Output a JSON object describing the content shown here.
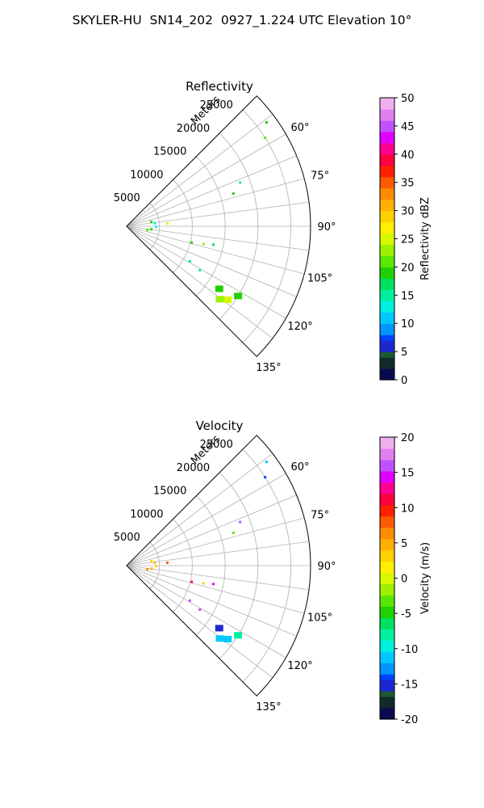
{
  "figure_title": "SKYLER-HU  SN14_202  0927_1.224 UTC Elevation 10°",
  "chart_data": [
    {
      "type": "polar-sector",
      "title": "Reflectivity",
      "radial_label": "Meters",
      "r_ticks": [
        5000,
        10000,
        15000,
        20000,
        25000
      ],
      "r_max": 28000,
      "azimuth_range_deg": [
        45,
        135
      ],
      "azimuth_tick_labels": [
        "60°",
        "75°",
        "90°",
        "105°",
        "120°",
        "135°"
      ],
      "colorbar": {
        "label": "Reflectivity dBZ",
        "min": 0,
        "max": 50,
        "ticks": [
          0,
          5,
          10,
          15,
          20,
          25,
          30,
          35,
          40,
          45,
          50
        ]
      },
      "echoes": [
        {
          "azimuth_deg": 53.5,
          "range_m": 26500,
          "value": 18
        },
        {
          "azimuth_deg": 57.5,
          "range_m": 25000,
          "value": 20
        },
        {
          "azimuth_deg": 69,
          "range_m": 18500,
          "value": 14
        },
        {
          "azimuth_deg": 73,
          "range_m": 17000,
          "value": 18
        },
        {
          "azimuth_deg": 80,
          "range_m": 3800,
          "value": 18
        },
        {
          "azimuth_deg": 84,
          "range_m": 4300,
          "value": 13
        },
        {
          "azimuth_deg": 86,
          "range_m": 6200,
          "value": 25
        },
        {
          "azimuth_deg": 91,
          "range_m": 4500,
          "value": 12
        },
        {
          "azimuth_deg": 97,
          "range_m": 3800,
          "value": 18
        },
        {
          "azimuth_deg": 100,
          "range_m": 3200,
          "value": 20
        },
        {
          "azimuth_deg": 104,
          "range_m": 10200,
          "value": 18
        },
        {
          "azimuth_deg": 103,
          "range_m": 12000,
          "value": 22
        },
        {
          "azimuth_deg": 102,
          "range_m": 13500,
          "value": 16
        },
        {
          "azimuth_deg": 119,
          "range_m": 11000,
          "value": 14
        },
        {
          "azimuth_deg": 121,
          "range_m": 13000,
          "value": 14
        },
        {
          "azimuth_deg": 124,
          "range_m": 17000,
          "value": 19
        },
        {
          "azimuth_deg": 126,
          "range_m": 19000,
          "value": 25
        },
        {
          "azimuth_deg": 128,
          "range_m": 18000,
          "value": 22
        },
        {
          "azimuth_deg": 122,
          "range_m": 20000,
          "value": 18
        }
      ]
    },
    {
      "type": "polar-sector",
      "title": "Velocity",
      "radial_label": "Meters",
      "r_ticks": [
        5000,
        10000,
        15000,
        20000,
        25000
      ],
      "r_max": 28000,
      "azimuth_range_deg": [
        45,
        135
      ],
      "azimuth_tick_labels": [
        "60°",
        "75°",
        "90°",
        "105°",
        "120°",
        "135°"
      ],
      "colorbar": {
        "label": "Velocity (m/s)",
        "min": -20,
        "max": 20,
        "ticks": [
          -20,
          -15,
          -10,
          -5,
          0,
          5,
          10,
          15,
          20
        ]
      },
      "echoes": [
        {
          "azimuth_deg": 53.5,
          "range_m": 26500,
          "value": -11
        },
        {
          "azimuth_deg": 57.5,
          "range_m": 25000,
          "value": -14
        },
        {
          "azimuth_deg": 69,
          "range_m": 18500,
          "value": 16
        },
        {
          "azimuth_deg": 73,
          "range_m": 17000,
          "value": -3
        },
        {
          "azimuth_deg": 80,
          "range_m": 3800,
          "value": 3
        },
        {
          "azimuth_deg": 84,
          "range_m": 4300,
          "value": 5
        },
        {
          "azimuth_deg": 86,
          "range_m": 6200,
          "value": 8
        },
        {
          "azimuth_deg": 91,
          "range_m": 4500,
          "value": 3
        },
        {
          "azimuth_deg": 97,
          "range_m": 3800,
          "value": 4
        },
        {
          "azimuth_deg": 100,
          "range_m": 3200,
          "value": 6
        },
        {
          "azimuth_deg": 104,
          "range_m": 10200,
          "value": 12
        },
        {
          "azimuth_deg": 103,
          "range_m": 12000,
          "value": 3
        },
        {
          "azimuth_deg": 102,
          "range_m": 13500,
          "value": 14
        },
        {
          "azimuth_deg": 119,
          "range_m": 11000,
          "value": 16
        },
        {
          "azimuth_deg": 121,
          "range_m": 13000,
          "value": 16
        },
        {
          "azimuth_deg": 124,
          "range_m": 17000,
          "value": -16
        },
        {
          "azimuth_deg": 126,
          "range_m": 19000,
          "value": -12
        },
        {
          "azimuth_deg": 128,
          "range_m": 18000,
          "value": -11
        },
        {
          "azimuth_deg": 122,
          "range_m": 20000,
          "value": -8
        }
      ]
    }
  ]
}
